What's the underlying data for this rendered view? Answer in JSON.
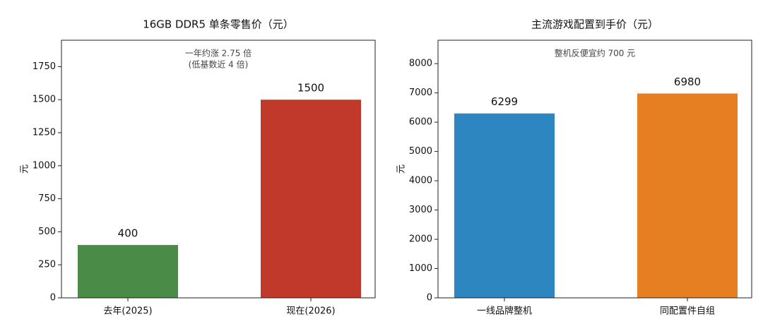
{
  "chart_data": [
    {
      "type": "bar",
      "title": "16GB DDR5 单条零售价（元）",
      "annotation": [
        "一年约涨 2.75 倍",
        "(低基数近 4 倍)"
      ],
      "y_label": "元",
      "categories": [
        "去年(2025)",
        "现在(2026)"
      ],
      "values": [
        400,
        1500
      ],
      "colors": [
        "#4a8b47",
        "#c0392b"
      ],
      "ylim": [
        0,
        1950
      ],
      "yticks": [
        0,
        250,
        500,
        750,
        1000,
        1250,
        1500,
        1750
      ]
    },
    {
      "type": "bar",
      "title": "主流游戏配置到手价（元）",
      "annotation": [
        "整机反便宜约 700 元"
      ],
      "y_label": "元",
      "categories": [
        "一线品牌整机",
        "同配置件自组"
      ],
      "values": [
        6299,
        6980
      ],
      "colors": [
        "#2e86c1",
        "#e67e22"
      ],
      "ylim": [
        0,
        8800
      ],
      "yticks": [
        0,
        1000,
        2000,
        3000,
        4000,
        5000,
        6000,
        7000,
        8000
      ]
    }
  ]
}
